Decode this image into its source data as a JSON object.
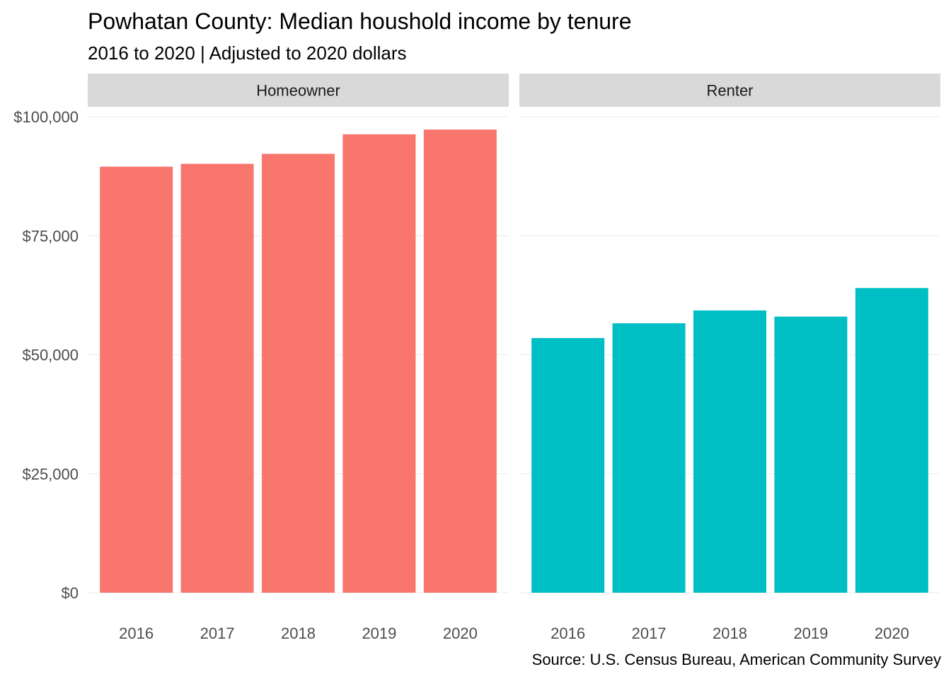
{
  "title": "Powhatan County: Median houshold income by tenure",
  "subtitle": "2016 to 2020 | Adjusted to 2020 dollars",
  "caption": "Source: U.S. Census Bureau, American Community Survey",
  "colors": {
    "Homeowner": "#F8766D",
    "Renter": "#00BFC4",
    "strip_background": "#D9D9D9",
    "gridline": "#EBEBEB",
    "axis_text": "#4D4D4D"
  },
  "chart_data": {
    "type": "bar",
    "facet_by": "tenure",
    "categories": [
      "2016",
      "2017",
      "2018",
      "2019",
      "2020"
    ],
    "series": [
      {
        "name": "Homeowner",
        "values": [
          89500,
          90100,
          92200,
          96300,
          97300
        ]
      },
      {
        "name": "Renter",
        "values": [
          53500,
          56600,
          59300,
          58000,
          64000
        ]
      }
    ],
    "y_ticks": [
      0,
      25000,
      50000,
      75000,
      100000
    ],
    "y_tick_labels": [
      "$0",
      "$25,000",
      "$50,000",
      "$75,000",
      "$100,000"
    ],
    "ylim": [
      0,
      100000
    ],
    "grid": true,
    "legend": "none"
  }
}
